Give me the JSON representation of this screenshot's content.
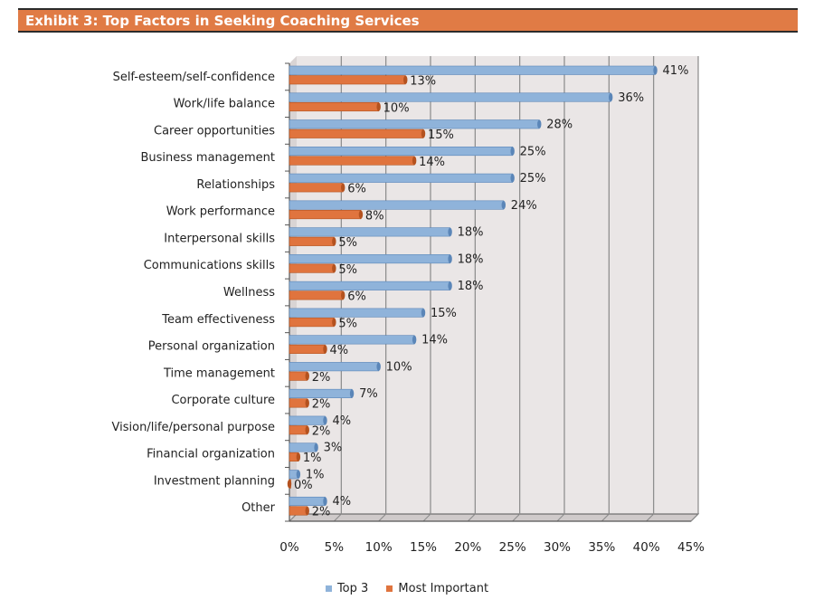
{
  "title": "Exhibit 3: Top Factors in Seeking Coaching Services",
  "colors": {
    "top3": "#8FB3DA",
    "top3_dark": "#5B86B8",
    "most": "#E0743E",
    "most_dark": "#B4521F",
    "plot_bg": "#EAE6E6",
    "title_bg": "#E07B45"
  },
  "legend": {
    "top3": "Top 3",
    "most": "Most Important"
  },
  "chart_data": {
    "type": "bar",
    "orientation": "horizontal",
    "title": "Exhibit 3: Top Factors in Seeking Coaching Services",
    "categories": [
      "Self-esteem/self-confidence",
      "Work/life balance",
      "Career opportunities",
      "Business management",
      "Relationships",
      "Work performance",
      "Interpersonal skills",
      "Communications skills",
      "Wellness",
      "Team effectiveness",
      "Personal organization",
      "Time management",
      "Corporate culture",
      "Vision/life/personal purpose",
      "Financial organization",
      "Investment planning",
      "Other"
    ],
    "series": [
      {
        "name": "Top 3",
        "values": [
          41,
          36,
          28,
          25,
          25,
          24,
          18,
          18,
          18,
          15,
          14,
          10,
          7,
          4,
          3,
          1,
          4
        ]
      },
      {
        "name": "Most Important",
        "values": [
          13,
          10,
          15,
          14,
          6,
          8,
          5,
          5,
          6,
          5,
          4,
          2,
          2,
          2,
          1,
          0,
          2
        ]
      }
    ],
    "xticks": [
      "0%",
      "5%",
      "10%",
      "15%",
      "20%",
      "25%",
      "30%",
      "35%",
      "40%",
      "45%"
    ],
    "xlim": [
      0,
      45
    ],
    "value_suffix": "%",
    "grid": true,
    "legend_position": "bottom"
  }
}
